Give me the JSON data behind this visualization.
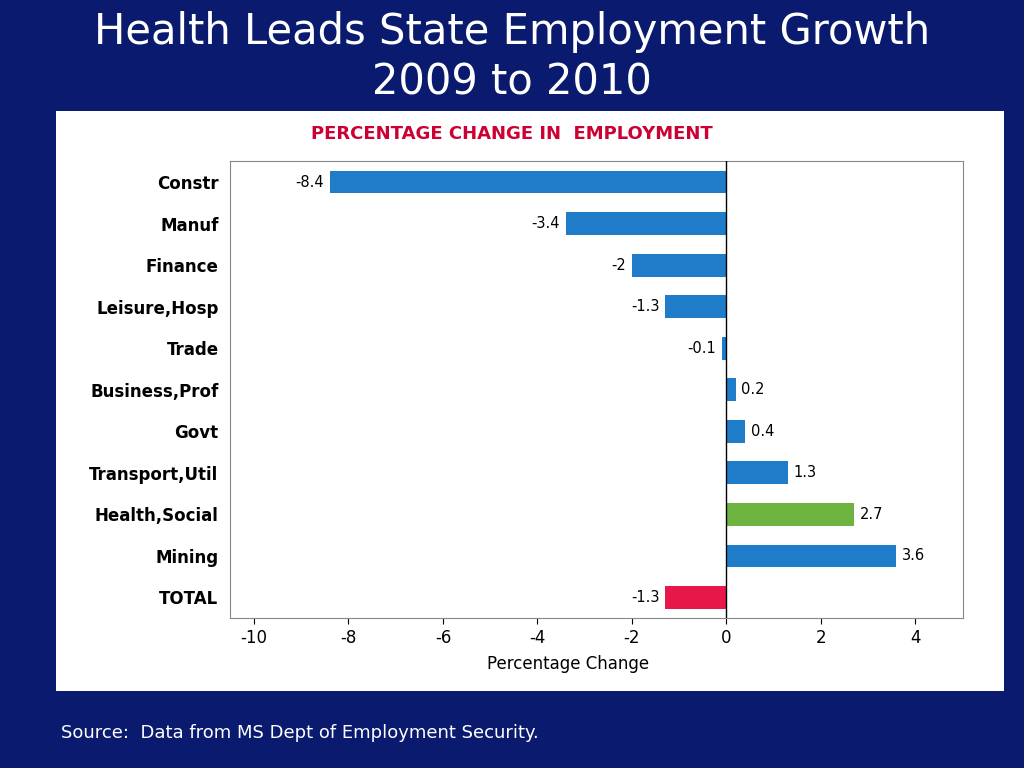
{
  "title": "Health Leads State Employment Growth\n2009 to 2010",
  "chart_title": "PERCENTAGE CHANGE IN  EMPLOYMENT",
  "xlabel": "Percentage Change",
  "categories": [
    "Constr",
    "Manuf",
    "Finance",
    "Leisure,Hosp",
    "Trade",
    "Business,Prof",
    "Govt",
    "Transport,Util",
    "Health,Social",
    "Mining",
    "TOTAL"
  ],
  "values": [
    -8.4,
    -3.4,
    -2.0,
    -1.3,
    -0.1,
    0.2,
    0.4,
    1.3,
    2.7,
    3.6,
    -1.3
  ],
  "bar_colors": [
    "#1E7CC8",
    "#1E7CC8",
    "#1E7CC8",
    "#1E7CC8",
    "#1E7CC8",
    "#1E7CC8",
    "#1E7CC8",
    "#1E7CC8",
    "#6DB33F",
    "#1E7CC8",
    "#E8174A"
  ],
  "value_labels": [
    "-8.4",
    "-3.4",
    "-2",
    "-1.3",
    "-0.1",
    "0.2",
    "0.4",
    "1.3",
    "2.7",
    "3.6",
    "-1.3"
  ],
  "xlim": [
    -10.5,
    5.0
  ],
  "xticks": [
    -10,
    -8,
    -6,
    -4,
    -2,
    0,
    2,
    4
  ],
  "background_outer": "#0A1A6E",
  "background_chart": "#FFFFFF",
  "title_color": "#FFFFFF",
  "chart_title_color": "#CC0033",
  "source_text": "Source:  Data from MS Dept of Employment Security.",
  "source_color": "#FFFFFF",
  "title_fontsize": 30,
  "chart_title_fontsize": 13
}
